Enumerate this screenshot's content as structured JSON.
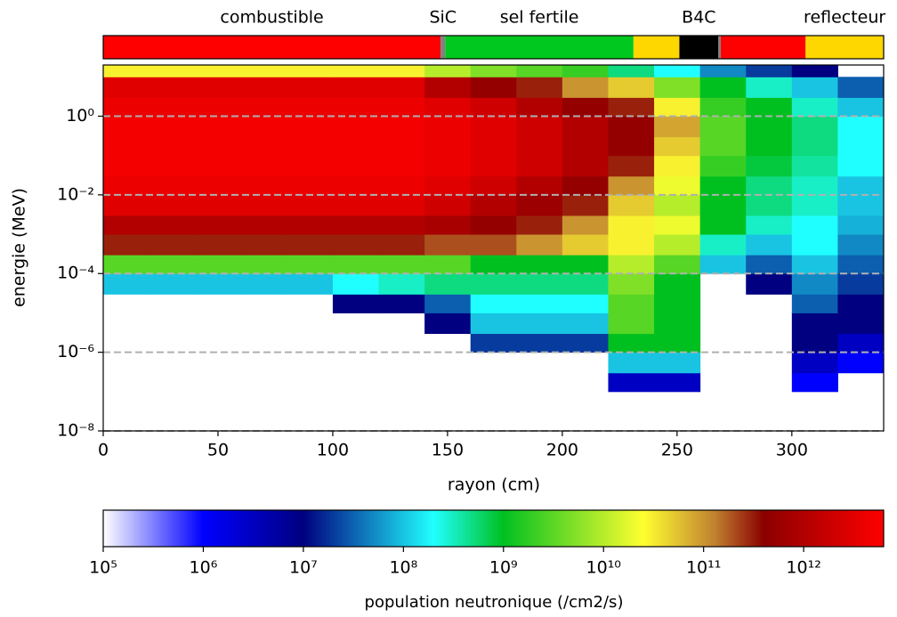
{
  "chart_data": {
    "type": "heatmap",
    "xlabel": "rayon (cm)",
    "ylabel": "energie (MeV)",
    "xlim": [
      0,
      340
    ],
    "ylim": [
      1e-08,
      20
    ],
    "ylog": true,
    "xticks": [
      0,
      50,
      100,
      150,
      200,
      250,
      300
    ],
    "yticks": [
      {
        "value": 1e-08,
        "label": "10⁻⁸"
      },
      {
        "value": 1e-06,
        "label": "10⁻⁶"
      },
      {
        "value": 0.0001,
        "label": "10⁻⁴"
      },
      {
        "value": 0.01,
        "label": "10⁻²"
      },
      {
        "value": 1,
        "label": "10⁰"
      }
    ],
    "grid": true,
    "regions": [
      {
        "start": 0,
        "end": 147,
        "color": "#ff0000",
        "label": "combustible"
      },
      {
        "start": 147,
        "end": 149,
        "color": "#808080",
        "label": "SiC"
      },
      {
        "start": 149,
        "end": 231,
        "color": "#00c81e",
        "label": "sel fertile"
      },
      {
        "start": 231,
        "end": 251,
        "color": "#ffd700",
        "label": null
      },
      {
        "start": 251,
        "end": 268,
        "color": "#000000",
        "label": "B4C"
      },
      {
        "start": 268,
        "end": 269,
        "color": "#808080",
        "label": null
      },
      {
        "start": 269,
        "end": 306,
        "color": "#ff0000",
        "label": null
      },
      {
        "start": 306,
        "end": 340,
        "color": "#ffd700",
        "label": "reflecteur"
      }
    ],
    "x_bins": [
      0,
      20,
      40,
      60,
      80,
      100,
      120,
      140,
      160,
      180,
      200,
      220,
      240,
      260,
      280,
      300,
      320,
      340
    ],
    "y_bins": [
      1e-08,
      3e-08,
      1e-07,
      3e-07,
      1e-06,
      3e-06,
      1e-05,
      3e-05,
      0.0001,
      0.0003,
      0.001,
      0.003,
      0.01,
      0.03,
      0.1,
      0.3,
      1,
      3,
      10,
      20
    ],
    "z": [
      [
        null,
        null,
        null,
        null,
        null,
        null,
        null,
        null,
        null,
        null,
        null,
        null,
        null,
        null,
        null,
        null,
        null
      ],
      [
        null,
        null,
        null,
        null,
        null,
        null,
        null,
        null,
        null,
        null,
        null,
        null,
        null,
        null,
        null,
        null,
        null
      ],
      [
        null,
        null,
        null,
        null,
        null,
        null,
        null,
        null,
        null,
        null,
        null,
        3000000.0,
        3000000.0,
        null,
        null,
        1000000.0,
        null
      ],
      [
        null,
        null,
        null,
        null,
        null,
        null,
        null,
        null,
        null,
        null,
        null,
        100000000.0,
        100000000.0,
        null,
        null,
        3000000.0,
        1000000.0
      ],
      [
        null,
        null,
        null,
        null,
        null,
        null,
        null,
        null,
        20000000.0,
        20000000.0,
        20000000.0,
        1000000000.0,
        1000000000.0,
        null,
        null,
        10000000.0,
        3000000.0
      ],
      [
        null,
        null,
        null,
        null,
        null,
        null,
        null,
        10000000.0,
        100000000.0,
        100000000.0,
        100000000.0,
        3000000000.0,
        1000000000.0,
        null,
        null,
        10000000.0,
        10000000.0
      ],
      [
        null,
        null,
        null,
        null,
        null,
        10000000.0,
        10000000.0,
        30000000.0,
        200000000.0,
        200000000.0,
        200000000.0,
        3000000000.0,
        1000000000.0,
        null,
        null,
        30000000.0,
        10000000.0
      ],
      [
        100000000.0,
        100000000.0,
        100000000.0,
        100000000.0,
        100000000.0,
        200000000.0,
        300000000.0,
        500000000.0,
        500000000.0,
        500000000.0,
        500000000.0,
        5000000000.0,
        1000000000.0,
        null,
        10000000.0,
        50000000.0,
        20000000.0
      ],
      [
        3000000000.0,
        3000000000.0,
        3000000000.0,
        3000000000.0,
        3000000000.0,
        3000000000.0,
        3000000000.0,
        3000000000.0,
        1000000000.0,
        1000000000.0,
        1000000000.0,
        10000000000.0,
        3000000000.0,
        100000000.0,
        30000000.0,
        100000000.0,
        30000000.0
      ],
      [
        300000000000.0,
        300000000000.0,
        300000000000.0,
        300000000000.0,
        300000000000.0,
        300000000000.0,
        300000000000.0,
        200000000000.0,
        200000000000.0,
        100000000000.0,
        50000000000.0,
        30000000000.0,
        10000000000.0,
        300000000.0,
        100000000.0,
        200000000.0,
        50000000.0
      ],
      [
        1000000000000.0,
        1000000000000.0,
        1000000000000.0,
        1000000000000.0,
        1000000000000.0,
        1000000000000.0,
        1000000000000.0,
        800000000000.0,
        500000000000.0,
        300000000000.0,
        100000000000.0,
        30000000000.0,
        20000000000.0,
        1000000000.0,
        300000000.0,
        200000000.0,
        80000000.0
      ],
      [
        3000000000000.0,
        3000000000000.0,
        3000000000000.0,
        3000000000000.0,
        3000000000000.0,
        3000000000000.0,
        3000000000000.0,
        2000000000000.0,
        1000000000000.0,
        600000000000.0,
        300000000000.0,
        50000000000.0,
        10000000000.0,
        1000000000.0,
        500000000.0,
        300000000.0,
        100000000.0
      ],
      [
        4000000000000.0,
        4000000000000.0,
        4000000000000.0,
        4000000000000.0,
        4000000000000.0,
        4000000000000.0,
        4000000000000.0,
        3000000000000.0,
        2000000000000.0,
        1000000000000.0,
        500000000000.0,
        100000000000.0,
        20000000000.0,
        1000000000.0,
        500000000.0,
        300000000.0,
        100000000.0
      ],
      [
        5000000000000.0,
        5000000000000.0,
        5000000000000.0,
        5000000000000.0,
        5000000000000.0,
        5000000000000.0,
        5000000000000.0,
        4000000000000.0,
        3000000000000.0,
        2000000000000.0,
        1000000000000.0,
        300000000000.0,
        30000000000.0,
        2000000000.0,
        800000000.0,
        400000000.0,
        200000000.0
      ],
      [
        5000000000000.0,
        5000000000000.0,
        5000000000000.0,
        5000000000000.0,
        5000000000000.0,
        5000000000000.0,
        5000000000000.0,
        4000000000000.0,
        3000000000000.0,
        2000000000000.0,
        1000000000000.0,
        500000000000.0,
        50000000000.0,
        3000000000.0,
        1000000000.0,
        500000000.0,
        200000000.0
      ],
      [
        5000000000000.0,
        5000000000000.0,
        5000000000000.0,
        5000000000000.0,
        5000000000000.0,
        5000000000000.0,
        5000000000000.0,
        4000000000000.0,
        3000000000000.0,
        2000000000000.0,
        1000000000000.0,
        500000000000.0,
        80000000000.0,
        3000000000.0,
        1000000000.0,
        500000000.0,
        200000000.0
      ],
      [
        4000000000000.0,
        4000000000000.0,
        4000000000000.0,
        4000000000000.0,
        4000000000000.0,
        4000000000000.0,
        4000000000000.0,
        3000000000000.0,
        2000000000000.0,
        1000000000000.0,
        500000000000.0,
        300000000000.0,
        30000000000.0,
        2000000000.0,
        1000000000.0,
        300000000.0,
        100000000.0
      ],
      [
        3000000000000.0,
        3000000000000.0,
        3000000000000.0,
        3000000000000.0,
        3000000000000.0,
        3000000000000.0,
        3000000000000.0,
        1000000000000.0,
        500000000000.0,
        300000000000.0,
        100000000000.0,
        50000000000.0,
        5000000000.0,
        1000000000.0,
        300000000.0,
        100000000.0,
        30000000.0
      ],
      [
        30000000000.0,
        30000000000.0,
        30000000000.0,
        30000000000.0,
        30000000000.0,
        30000000000.0,
        30000000000.0,
        10000000000.0,
        5000000000.0,
        3000000000.0,
        2000000000.0,
        500000000.0,
        200000000.0,
        50000000.0,
        20000000.0,
        10000000.0,
        null
      ]
    ],
    "colorbar": {
      "label": "population neutronique (/cm2/s)",
      "clim": [
        100000.0,
        6300000000000.0
      ],
      "log": true,
      "ticks": [
        {
          "value": 100000.0,
          "label": "10⁵"
        },
        {
          "value": 1000000.0,
          "label": "10⁶"
        },
        {
          "value": 10000000.0,
          "label": "10⁷"
        },
        {
          "value": 100000000.0,
          "label": "10⁸"
        },
        {
          "value": 1000000000.0,
          "label": "10⁹"
        },
        {
          "value": 10000000000.0,
          "label": "10¹⁰"
        },
        {
          "value": 100000000000.0,
          "label": "10¹¹"
        },
        {
          "value": 1000000000000.0,
          "label": "10¹²"
        }
      ],
      "colormap": [
        {
          "value": 100000.0,
          "color": "#ffffff"
        },
        {
          "value": 1000000.0,
          "color": "#0000ff"
        },
        {
          "value": 10000000.0,
          "color": "#000080"
        },
        {
          "value": 200000000.0,
          "color": "#20ffff"
        },
        {
          "value": 1000000000.0,
          "color": "#00c020"
        },
        {
          "value": 25000000000.0,
          "color": "#ffff30"
        },
        {
          "value": 130000000000.0,
          "color": "#c08030"
        },
        {
          "value": 400000000000.0,
          "color": "#8b0000"
        },
        {
          "value": 6300000000000.0,
          "color": "#ff0000"
        }
      ]
    }
  }
}
